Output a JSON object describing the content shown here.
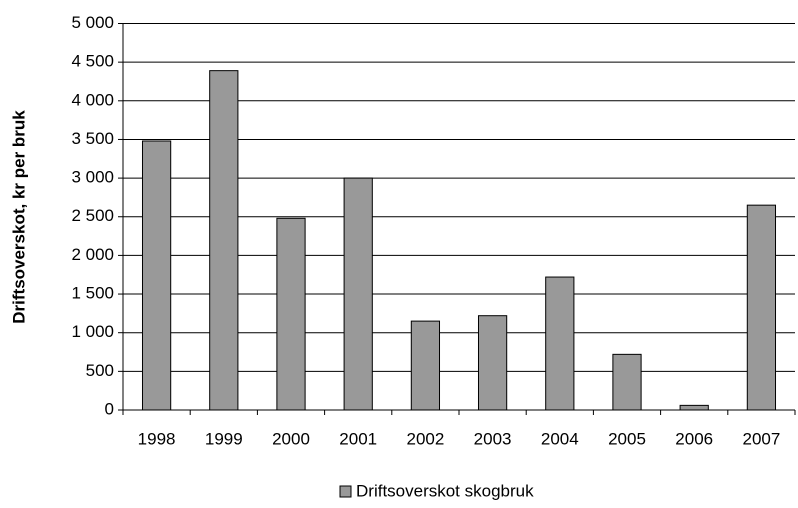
{
  "chart_data": {
    "type": "bar",
    "y_label": "Driftsoverskot, kr per bruk",
    "categories": [
      "1998",
      "1999",
      "2000",
      "2001",
      "2002",
      "2003",
      "2004",
      "2005",
      "2006",
      "2007"
    ],
    "series": [
      {
        "name": "Driftsoverskot skogbruk",
        "color": "#999999",
        "values": [
          3480,
          4390,
          2480,
          3000,
          1150,
          1220,
          1720,
          720,
          60,
          2650
        ]
      }
    ],
    "ylim": [
      0,
      5000
    ],
    "yticks": [
      0,
      500,
      {
        "value": 1000,
        "label": "1 000"
      },
      {
        "value": 1500,
        "label": "1 500"
      },
      {
        "value": 2000,
        "label": "2 000"
      },
      {
        "value": 2500,
        "label": "2 500"
      },
      {
        "value": 3000,
        "label": "3 000"
      },
      {
        "value": 3500,
        "label": "3 500"
      },
      {
        "value": 4000,
        "label": "4 000"
      },
      {
        "value": 4500,
        "label": "4 500"
      },
      {
        "value": 5000,
        "label": "5 000"
      }
    ],
    "grid": true,
    "legend": "bottom"
  }
}
